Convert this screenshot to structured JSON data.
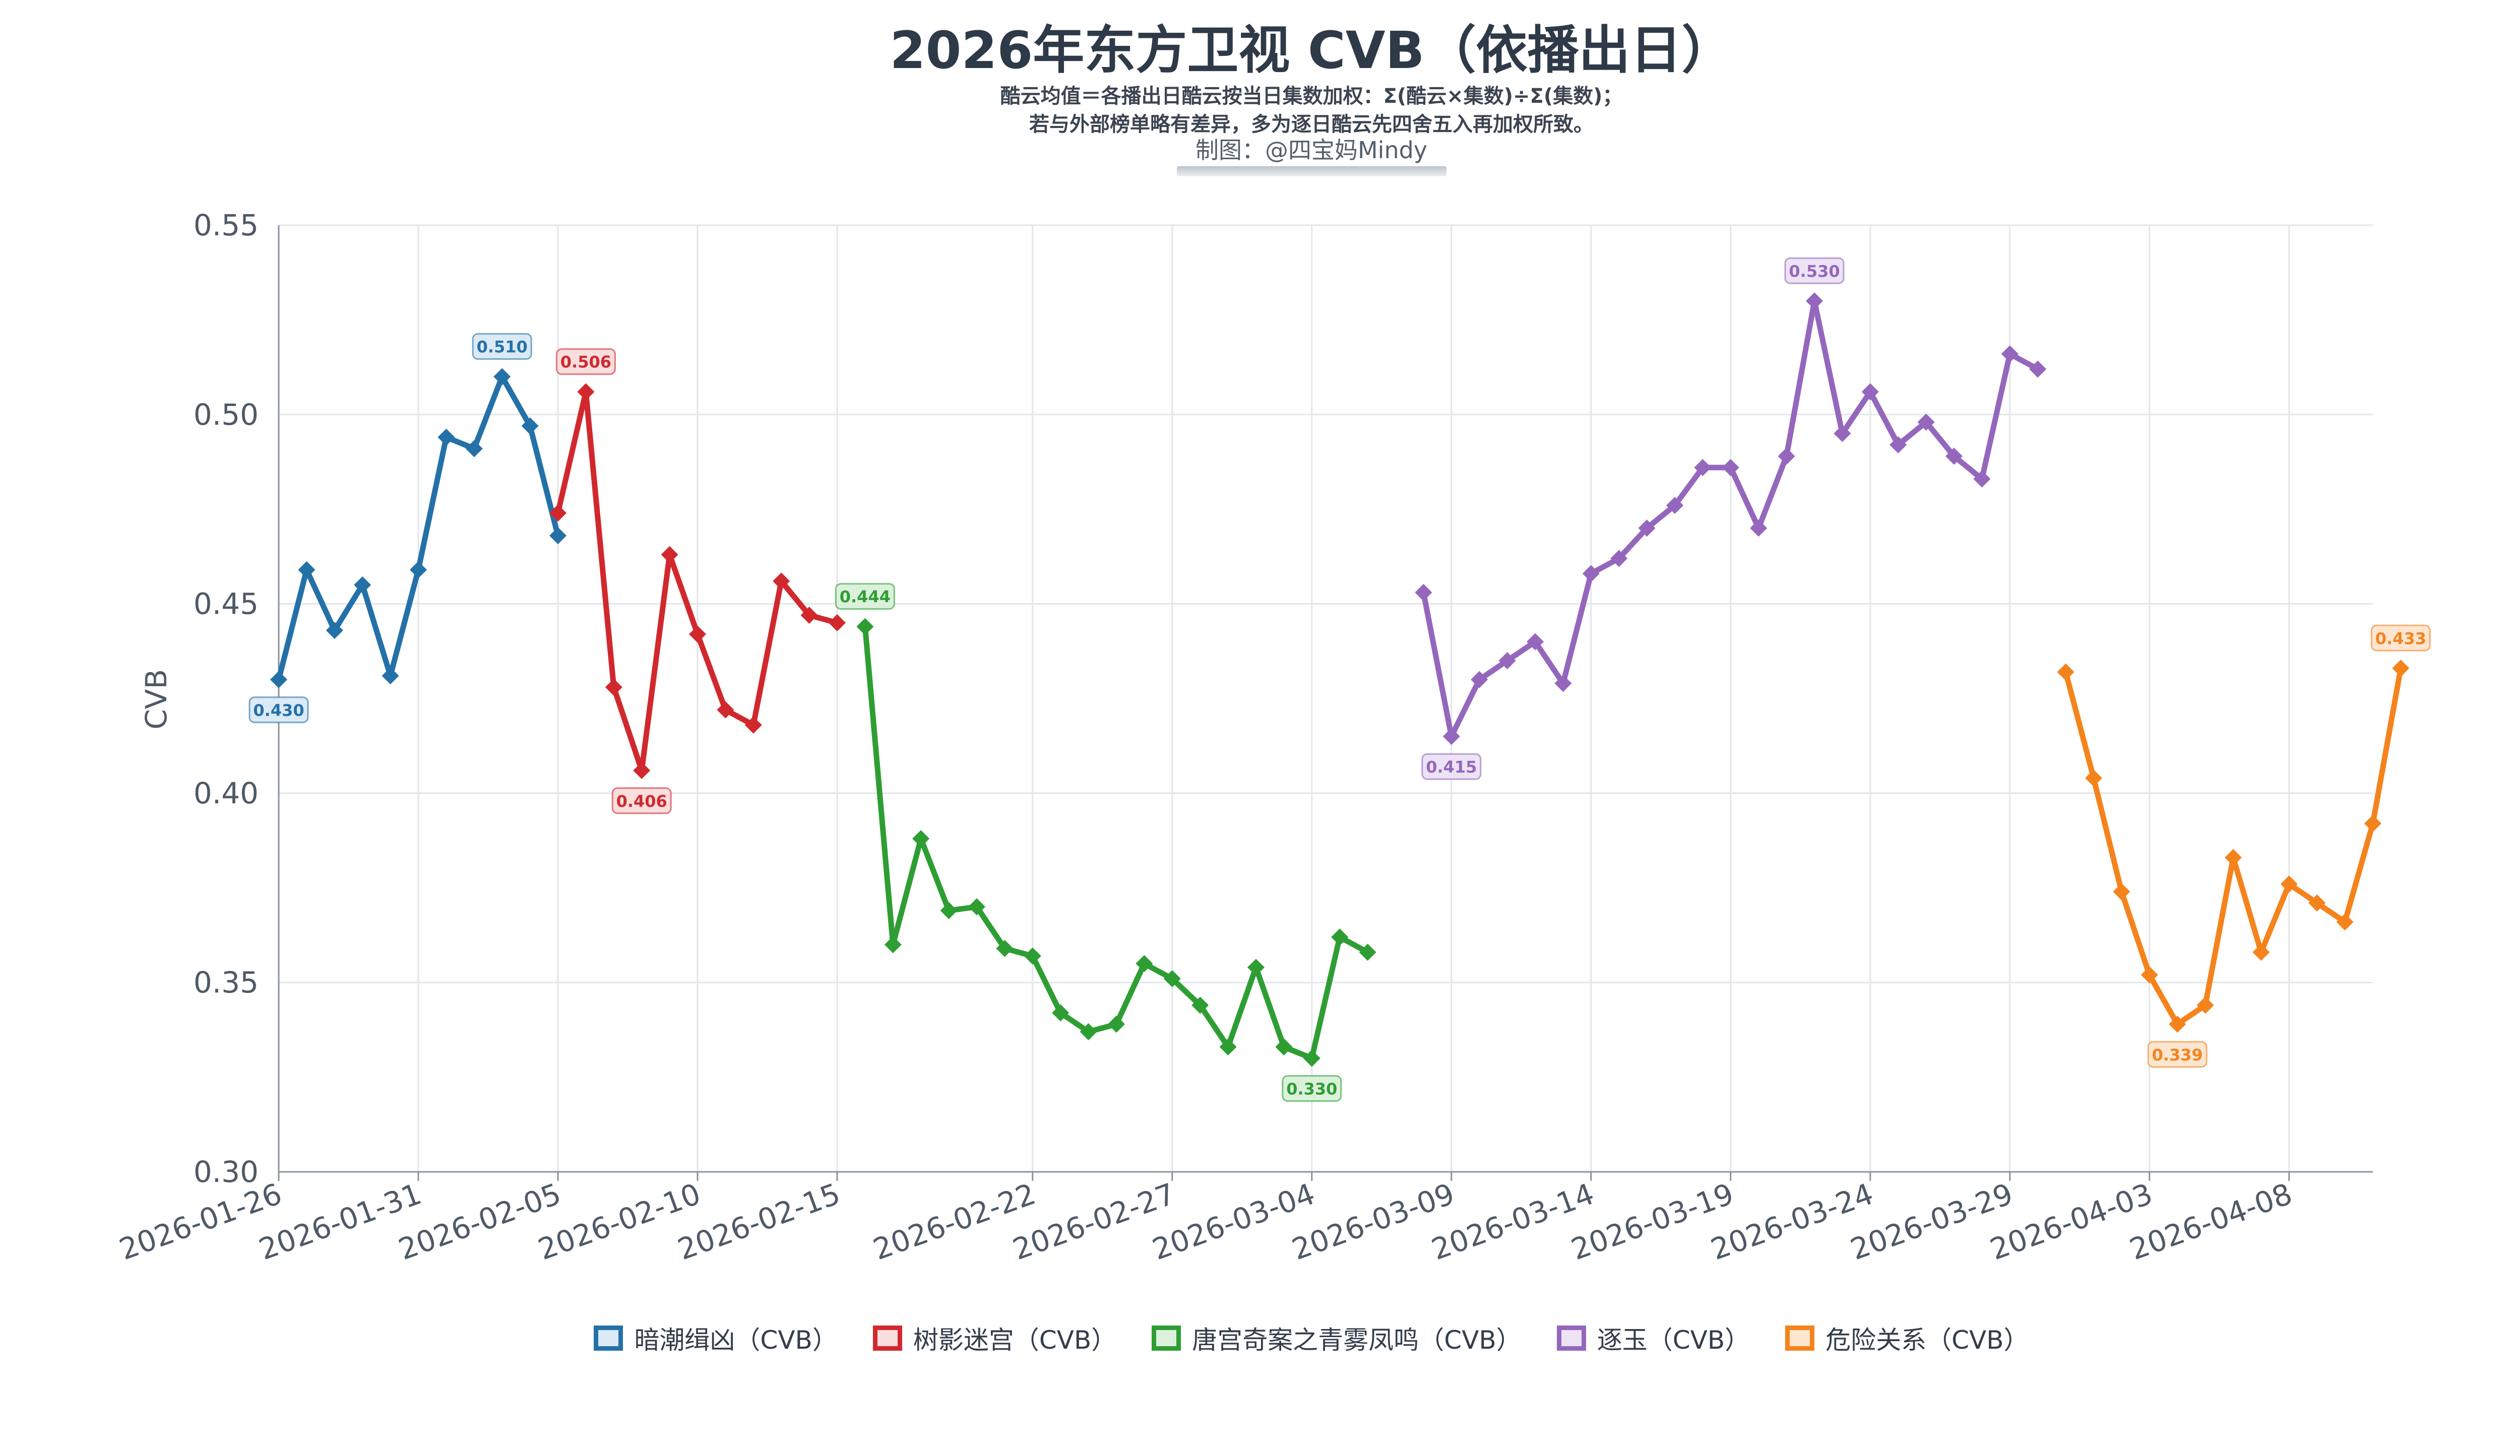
{
  "header": {
    "title": "2026年东方卫视 CVB（依播出日）",
    "subtitle_line1": "酷云均值＝各播出日酷云按当日集数加权：Σ(酷云×集数)÷Σ(集数)；",
    "subtitle_line2": "若与外部榜单略有差异，多为逐日酷云先四舍五入再加权所致。",
    "credit": "制图：@四宝妈Mindy"
  },
  "chart_data": {
    "type": "line",
    "title": "2026年东方卫视 CVB（依播出日）",
    "xlabel": "",
    "ylabel": "CVB",
    "x_start": "2026-01-26",
    "x_end": "2026-04-11",
    "ylim": [
      0.3,
      0.55
    ],
    "y_ticks": [
      "0.30",
      "0.35",
      "0.40",
      "0.45",
      "0.50",
      "0.55"
    ],
    "x_ticks": [
      "2026-01-26",
      "2026-01-31",
      "2026-02-05",
      "2026-02-10",
      "2026-02-15",
      "2026-02-22",
      "2026-02-27",
      "2026-03-04",
      "2026-03-09",
      "2026-03-14",
      "2026-03-19",
      "2026-03-24",
      "2026-03-29",
      "2026-04-03",
      "2026-04-08"
    ],
    "grid": true,
    "legend_position": "bottom",
    "series": [
      {
        "name": "暗潮缉凶（CVB）",
        "color": "#2471a8",
        "label_bg": "#dbeaf5",
        "start": "2026-01-26",
        "values": [
          0.43,
          0.459,
          0.443,
          0.455,
          0.431,
          0.459,
          0.494,
          0.491,
          0.51,
          0.497,
          0.468
        ],
        "annotations": [
          {
            "index": 0,
            "text": "0.430",
            "pos": "below"
          },
          {
            "index": 8,
            "text": "0.510",
            "pos": "above"
          }
        ]
      },
      {
        "name": "树影迷宫（CVB）",
        "color": "#d1282e",
        "label_bg": "#f9dede",
        "start": "2026-02-05",
        "values": [
          0.474,
          0.506,
          0.428,
          0.406,
          0.463,
          0.442,
          0.422,
          0.418,
          0.456,
          0.447,
          0.445
        ],
        "annotations": [
          {
            "index": 1,
            "text": "0.506",
            "pos": "above"
          },
          {
            "index": 3,
            "text": "0.406",
            "pos": "below"
          }
        ]
      },
      {
        "name": "唐宫奇案之青雾凤鸣（CVB）",
        "color": "#2e9e33",
        "label_bg": "#dcf1dc",
        "start": "2026-02-16",
        "values": [
          0.444,
          0.36,
          0.388,
          0.369,
          0.37,
          0.359,
          0.357,
          0.342,
          0.337,
          0.339,
          0.355,
          0.351,
          0.344,
          0.333,
          0.354,
          0.333,
          0.33,
          0.362,
          0.358
        ],
        "annotations": [
          {
            "index": 0,
            "text": "0.444",
            "pos": "above"
          },
          {
            "index": 16,
            "text": "0.330",
            "pos": "below"
          }
        ]
      },
      {
        "name": "逐玉（CVB）",
        "color": "#9467bd",
        "label_bg": "#ece3f4",
        "start": "2026-03-08",
        "values": [
          0.453,
          0.415,
          0.43,
          0.435,
          0.44,
          0.429,
          0.458,
          0.462,
          0.47,
          0.476,
          0.486,
          0.486,
          0.47,
          0.489,
          0.53,
          0.495,
          0.506,
          0.492,
          0.498,
          0.489,
          0.483,
          0.516,
          0.512
        ],
        "annotations": [
          {
            "index": 1,
            "text": "0.415",
            "pos": "below"
          },
          {
            "index": 14,
            "text": "0.530",
            "pos": "above"
          }
        ]
      },
      {
        "name": "危险关系（CVB）",
        "color": "#f5831c",
        "label_bg": "#fde6d0",
        "start": "2026-03-31",
        "values": [
          0.432,
          0.404,
          0.374,
          0.352,
          0.339,
          0.344,
          0.383,
          0.358,
          0.376,
          0.371,
          0.366,
          0.392,
          0.433
        ],
        "annotations": [
          {
            "index": 4,
            "text": "0.339",
            "pos": "below"
          },
          {
            "index": 12,
            "text": "0.433",
            "pos": "above"
          }
        ]
      }
    ]
  }
}
